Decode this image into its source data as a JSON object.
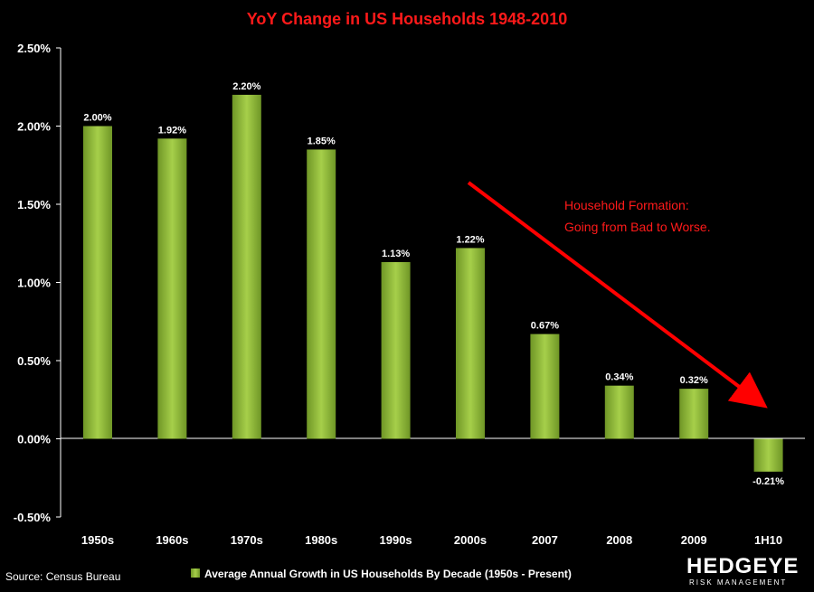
{
  "chart_data": {
    "type": "bar",
    "title": "YoY Change in US Households  1948-2010",
    "categories": [
      "1950s",
      "1960s",
      "1970s",
      "1980s",
      "1990s",
      "2000s",
      "2007",
      "2008",
      "2009",
      "1H10"
    ],
    "values": [
      2.0,
      1.92,
      2.2,
      1.85,
      1.13,
      1.22,
      0.67,
      0.34,
      0.32,
      -0.21
    ],
    "data_labels": [
      "2.00%",
      "1.92%",
      "2.20%",
      "1.85%",
      "1.13%",
      "1.22%",
      "0.67%",
      "0.34%",
      "0.32%",
      "-0.21%"
    ],
    "y_ticks": [
      -0.5,
      0.0,
      0.5,
      1.0,
      1.5,
      2.0,
      2.5
    ],
    "y_tick_labels": [
      "-0.50%",
      "0.00%",
      "0.50%",
      "1.00%",
      "1.50%",
      "2.00%",
      "2.50%"
    ],
    "ylim": [
      -0.5,
      2.5
    ],
    "xlabel": "",
    "ylabel": "",
    "series_name": "Average Annual Growth in US Households By Decade (1950s - Present)",
    "bar_color": "#8db83a",
    "annotation": [
      "Household Formation:",
      "Going from Bad to Worse."
    ],
    "annotation_color": "#ff1a1a",
    "grid": false,
    "legend_position": "bottom-center"
  },
  "source": "Source: Census Bureau",
  "logo": {
    "main": "HEDGEYE",
    "sub": "RISK MANAGEMENT"
  }
}
